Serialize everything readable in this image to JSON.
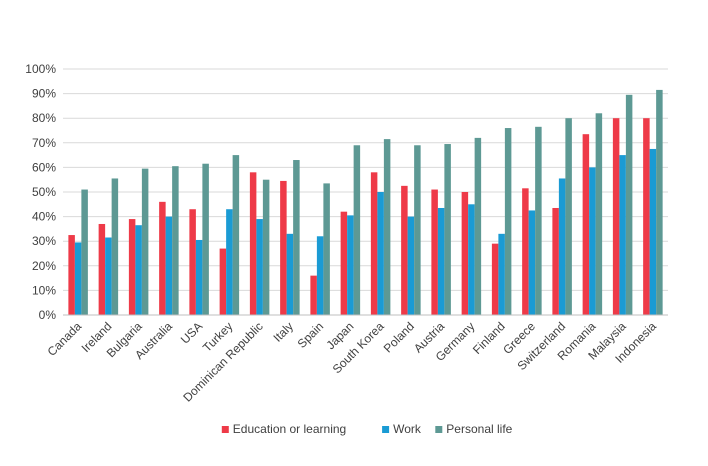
{
  "chart_data": {
    "type": "bar",
    "title": "",
    "xlabel": "",
    "ylabel": "",
    "ylim": [
      0,
      100
    ],
    "y_tick_step": 10,
    "y_tick_suffix": "%",
    "grid": true,
    "legend_position": "bottom",
    "categories": [
      "Canada",
      "Ireland",
      "Bulgaria",
      "Australia",
      "USA",
      "Turkey",
      "Dominican Republic",
      "Italy",
      "Spain",
      "Japan",
      "South Korea",
      "Poland",
      "Austria",
      "Germany",
      "Finland",
      "Greece",
      "Switzerland",
      "Romania",
      "Malaysia",
      "Indonesia"
    ],
    "series": [
      {
        "name": "Education or learning",
        "color": "#ee3a48",
        "values": [
          32.5,
          37,
          39,
          46,
          43,
          27,
          58,
          54.5,
          16,
          42,
          58,
          52.5,
          51,
          50,
          29,
          51.5,
          43.5,
          73.5,
          80,
          80
        ]
      },
      {
        "name": "Work",
        "color": "#1a9bd4",
        "values": [
          29.5,
          31.5,
          36.5,
          40,
          30.5,
          43,
          39,
          33,
          32,
          40.5,
          50,
          40,
          43.5,
          45,
          33,
          42.5,
          55.5,
          60,
          65,
          67.5
        ]
      },
      {
        "name": "Personal life",
        "color": "#5d9994",
        "values": [
          51,
          55.5,
          59.5,
          60.5,
          61.5,
          65,
          55,
          63,
          53.5,
          69,
          71.5,
          69,
          69.5,
          72,
          76,
          76.5,
          80,
          82,
          89.5,
          91.5
        ]
      }
    ]
  }
}
